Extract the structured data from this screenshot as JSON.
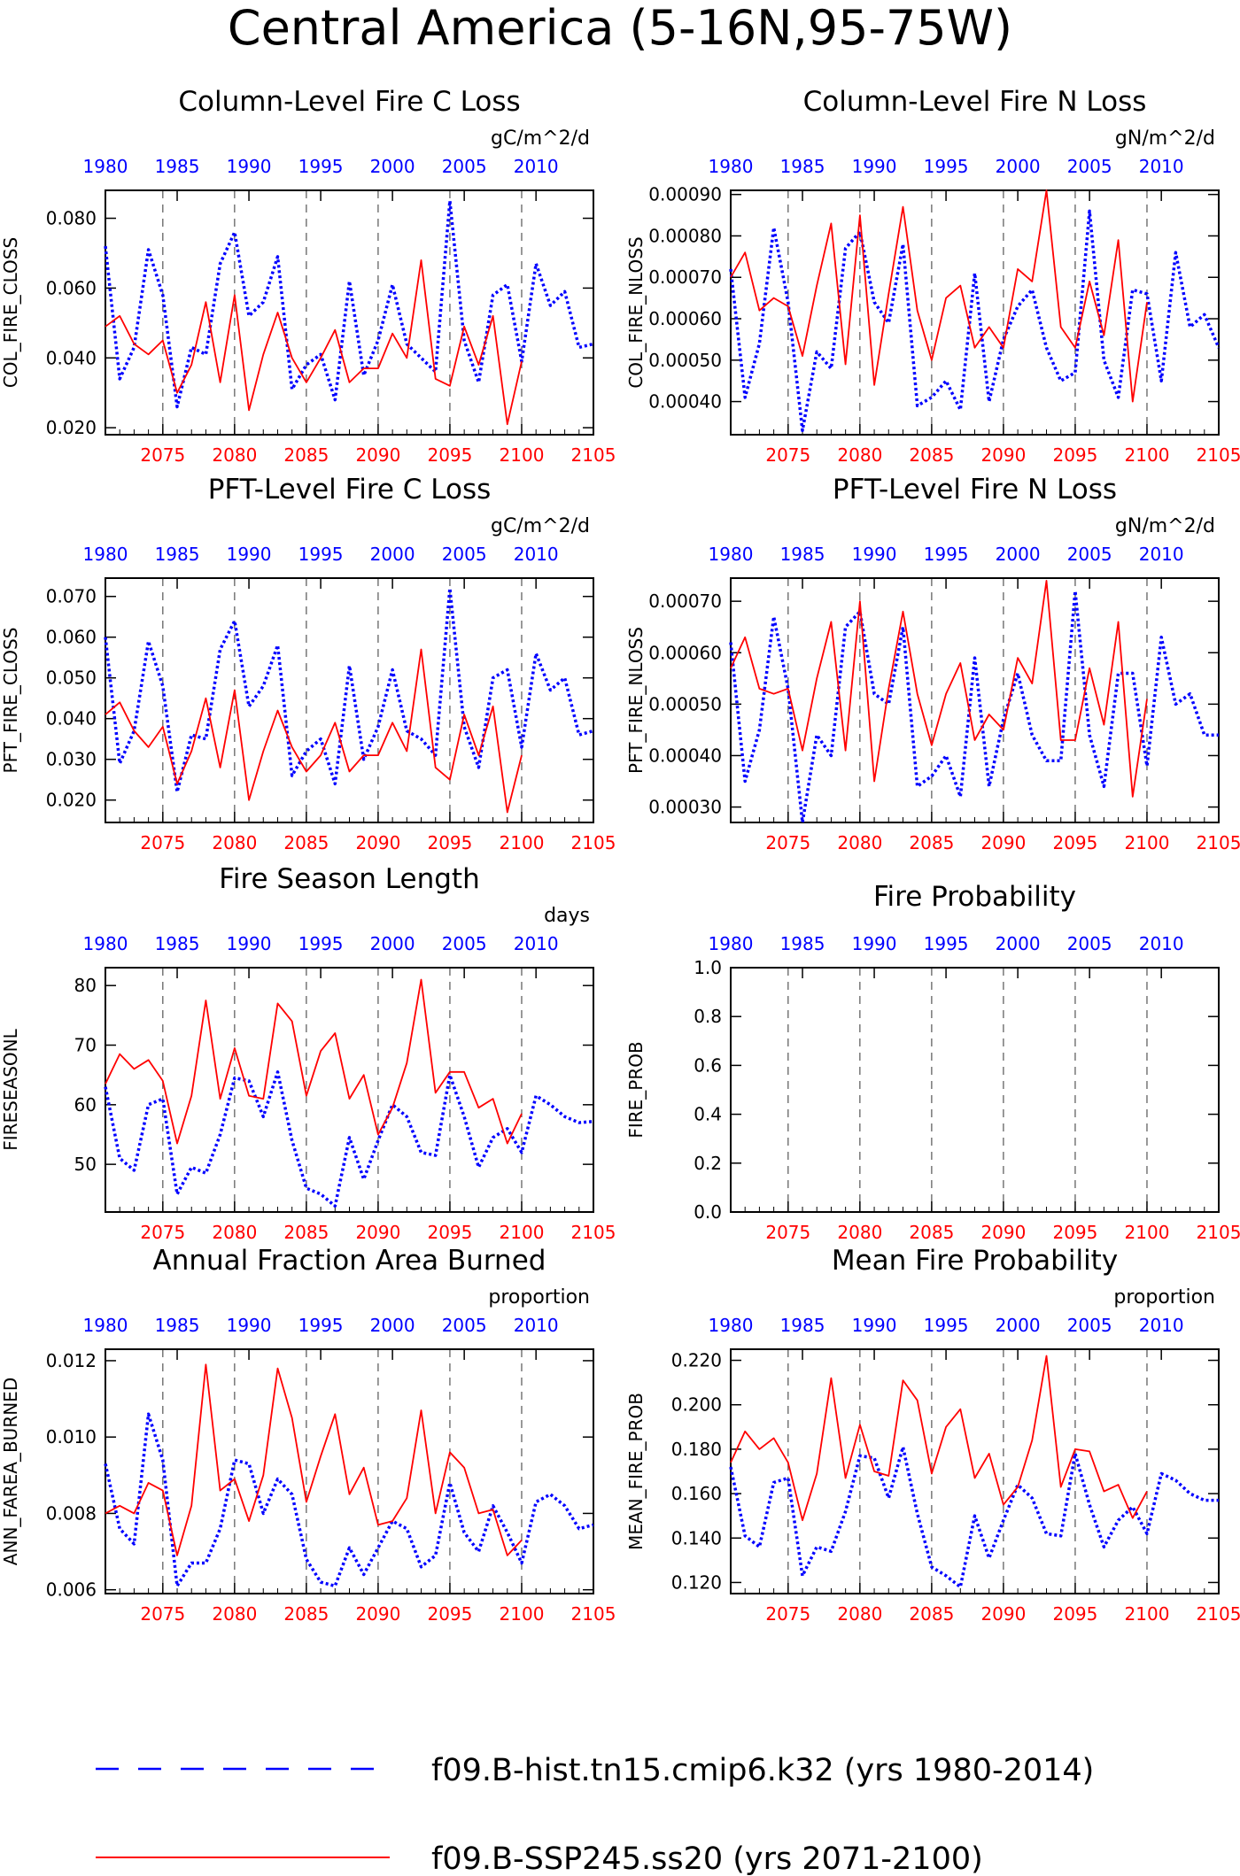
{
  "page": {
    "title": "Central America (5-16N,95-75W)"
  },
  "colors": {
    "hist": "#0000ff",
    "ssp": "#ff0000",
    "axis": "#000000"
  },
  "legend": [
    {
      "style": "dashed",
      "color": "#0000ff",
      "label": "f09.B-hist.tn15.cmip6.k32 (yrs 1980-2014)"
    },
    {
      "style": "solid",
      "color": "#ff0000",
      "label": "f09.B-SSP245.ss20 (yrs 2071-2100)"
    }
  ],
  "chart_data": [
    {
      "type": "line",
      "title": "Column-Level Fire C Loss",
      "ylabel": "COL_FIRE_CLOSS",
      "units": "gC/m^2/d",
      "ylim": [
        0.018,
        0.088
      ],
      "yticks": [
        0.02,
        0.04,
        0.06,
        0.08
      ],
      "ytick_labels": [
        "0.020",
        "0.040",
        "0.060",
        "0.080"
      ],
      "bottom_axis": {
        "label_color": "#ff0000",
        "ticks": [
          2075,
          2080,
          2085,
          2090,
          2095,
          2100,
          2105
        ]
      },
      "top_axis": {
        "label_color": "#0000ff",
        "ticks": [
          1980,
          1985,
          1990,
          1995,
          2000,
          2005,
          2010
        ]
      },
      "series": [
        {
          "name": "f09.B-hist.tn15.cmip6.k32",
          "style": "dotted",
          "color": "#0000ff",
          "x_start": 1980,
          "values": [
            0.072,
            0.034,
            0.043,
            0.071,
            0.058,
            0.026,
            0.043,
            0.041,
            0.067,
            0.076,
            0.052,
            0.056,
            0.069,
            0.031,
            0.038,
            0.041,
            0.028,
            0.062,
            0.035,
            0.045,
            0.061,
            0.044,
            0.04,
            0.036,
            0.085,
            0.045,
            0.033,
            0.058,
            0.061,
            0.039,
            0.067,
            0.055,
            0.059,
            0.043,
            0.044
          ]
        },
        {
          "name": "f09.B-SSP245.ss20",
          "style": "solid",
          "color": "#ff0000",
          "x_start": 2071,
          "values": [
            0.049,
            0.052,
            0.044,
            0.041,
            0.045,
            0.03,
            0.038,
            0.056,
            0.033,
            0.058,
            0.025,
            0.041,
            0.053,
            0.04,
            0.033,
            0.04,
            0.048,
            0.033,
            0.037,
            0.037,
            0.047,
            0.04,
            0.068,
            0.034,
            0.032,
            0.049,
            0.038,
            0.052,
            0.021,
            0.039
          ]
        }
      ]
    },
    {
      "type": "line",
      "title": "Column-Level Fire N Loss",
      "ylabel": "COL_FIRE_NLOSS",
      "units": "gN/m^2/d",
      "ylim": [
        0.00032,
        0.00091
      ],
      "yticks": [
        0.0004,
        0.0005,
        0.0006,
        0.0007,
        0.0008,
        0.0009
      ],
      "ytick_labels": [
        "0.00040",
        "0.00050",
        "0.00060",
        "0.00070",
        "0.00080",
        "0.00090"
      ],
      "bottom_axis": {
        "label_color": "#ff0000",
        "ticks": [
          2075,
          2080,
          2085,
          2090,
          2095,
          2100,
          2105
        ]
      },
      "top_axis": {
        "label_color": "#0000ff",
        "ticks": [
          1980,
          1985,
          1990,
          1995,
          2000,
          2005,
          2010
        ]
      },
      "series": [
        {
          "name": "f09.B-hist.tn15.cmip6.k32",
          "style": "dotted",
          "color": "#0000ff",
          "x_start": 1980,
          "values": [
            0.00072,
            0.00041,
            0.00054,
            0.00082,
            0.00064,
            0.00033,
            0.00052,
            0.00048,
            0.00077,
            0.00081,
            0.00064,
            0.00059,
            0.00078,
            0.00039,
            0.00041,
            0.00045,
            0.00038,
            0.00071,
            0.0004,
            0.00055,
            0.00063,
            0.00067,
            0.00053,
            0.00045,
            0.00047,
            0.00086,
            0.0005,
            0.00041,
            0.00067,
            0.00066,
            0.00045,
            0.00076,
            0.00058,
            0.00061,
            0.00053
          ]
        },
        {
          "name": "f09.B-SSP245.ss20",
          "style": "solid",
          "color": "#ff0000",
          "x_start": 2071,
          "values": [
            0.0007,
            0.00076,
            0.00062,
            0.00065,
            0.00063,
            0.00051,
            0.00068,
            0.00083,
            0.00049,
            0.00085,
            0.00044,
            0.00066,
            0.00087,
            0.00062,
            0.0005,
            0.00065,
            0.00068,
            0.00053,
            0.00058,
            0.00053,
            0.00072,
            0.00069,
            0.00091,
            0.00058,
            0.00053,
            0.00069,
            0.00056,
            0.00079,
            0.0004,
            0.00064
          ]
        }
      ]
    },
    {
      "type": "line",
      "title": "PFT-Level Fire C Loss",
      "ylabel": "PFT_FIRE_CLOSS",
      "units": "gC/m^2/d",
      "ylim": [
        0.0145,
        0.0745
      ],
      "yticks": [
        0.02,
        0.03,
        0.04,
        0.05,
        0.06,
        0.07
      ],
      "ytick_labels": [
        "0.020",
        "0.030",
        "0.040",
        "0.050",
        "0.060",
        "0.070"
      ],
      "bottom_axis": {
        "label_color": "#ff0000",
        "ticks": [
          2075,
          2080,
          2085,
          2090,
          2095,
          2100,
          2105
        ]
      },
      "top_axis": {
        "label_color": "#0000ff",
        "ticks": [
          1980,
          1985,
          1990,
          1995,
          2000,
          2005,
          2010
        ]
      },
      "series": [
        {
          "name": "f09.B-hist.tn15.cmip6.k32",
          "style": "dotted",
          "color": "#0000ff",
          "x_start": 1980,
          "values": [
            0.06,
            0.029,
            0.037,
            0.059,
            0.048,
            0.022,
            0.036,
            0.035,
            0.057,
            0.064,
            0.043,
            0.048,
            0.058,
            0.026,
            0.032,
            0.035,
            0.024,
            0.053,
            0.03,
            0.038,
            0.052,
            0.037,
            0.035,
            0.031,
            0.072,
            0.038,
            0.028,
            0.05,
            0.052,
            0.033,
            0.056,
            0.047,
            0.05,
            0.036,
            0.037
          ]
        },
        {
          "name": "f09.B-SSP245.ss20",
          "style": "solid",
          "color": "#ff0000",
          "x_start": 2071,
          "values": [
            0.041,
            0.044,
            0.037,
            0.033,
            0.038,
            0.024,
            0.032,
            0.045,
            0.028,
            0.047,
            0.02,
            0.032,
            0.042,
            0.033,
            0.027,
            0.031,
            0.039,
            0.027,
            0.031,
            0.031,
            0.039,
            0.032,
            0.057,
            0.028,
            0.025,
            0.041,
            0.031,
            0.043,
            0.017,
            0.031
          ]
        }
      ]
    },
    {
      "type": "line",
      "title": "PFT-Level Fire N Loss",
      "ylabel": "PFT_FIRE_NLOSS",
      "units": "gN/m^2/d",
      "ylim": [
        0.00027,
        0.000745
      ],
      "yticks": [
        0.0003,
        0.0004,
        0.0005,
        0.0006,
        0.0007
      ],
      "ytick_labels": [
        "0.00030",
        "0.00040",
        "0.00050",
        "0.00060",
        "0.00070"
      ],
      "bottom_axis": {
        "label_color": "#ff0000",
        "ticks": [
          2075,
          2080,
          2085,
          2090,
          2095,
          2100,
          2105
        ]
      },
      "top_axis": {
        "label_color": "#0000ff",
        "ticks": [
          1980,
          1985,
          1990,
          1995,
          2000,
          2005,
          2010
        ]
      },
      "series": [
        {
          "name": "f09.B-hist.tn15.cmip6.k32",
          "style": "dotted",
          "color": "#0000ff",
          "x_start": 1980,
          "values": [
            0.00062,
            0.00035,
            0.00045,
            0.00067,
            0.00053,
            0.00027,
            0.00044,
            0.0004,
            0.00065,
            0.00068,
            0.00052,
            0.0005,
            0.00065,
            0.00034,
            0.00036,
            0.0004,
            0.00032,
            0.00059,
            0.00034,
            0.00047,
            0.00056,
            0.00044,
            0.00039,
            0.00039,
            0.00072,
            0.00044,
            0.00034,
            0.00056,
            0.00056,
            0.00038,
            0.00063,
            0.0005,
            0.00052,
            0.00044,
            0.00044
          ]
        },
        {
          "name": "f09.B-SSP245.ss20",
          "style": "solid",
          "color": "#ff0000",
          "x_start": 2071,
          "values": [
            0.00057,
            0.00063,
            0.00053,
            0.00052,
            0.00053,
            0.00041,
            0.00055,
            0.00066,
            0.00041,
            0.0007,
            0.00035,
            0.00053,
            0.00068,
            0.00052,
            0.00042,
            0.00052,
            0.00058,
            0.00043,
            0.00048,
            0.00045,
            0.00059,
            0.00054,
            0.00074,
            0.00043,
            0.00043,
            0.00057,
            0.00046,
            0.00066,
            0.00032,
            0.00051
          ]
        }
      ]
    },
    {
      "type": "line",
      "title": "Fire Season Length",
      "ylabel": "FIRESEASONL",
      "units": "days",
      "ylim": [
        42,
        83
      ],
      "yticks": [
        50,
        60,
        70,
        80
      ],
      "ytick_labels": [
        "50",
        "60",
        "70",
        "80"
      ],
      "bottom_axis": {
        "label_color": "#ff0000",
        "ticks": [
          2075,
          2080,
          2085,
          2090,
          2095,
          2100,
          2105
        ]
      },
      "top_axis": {
        "label_color": "#0000ff",
        "ticks": [
          1980,
          1985,
          1990,
          1995,
          2000,
          2005,
          2010
        ]
      },
      "series": [
        {
          "name": "f09.B-hist.tn15.cmip6.k32",
          "style": "dotted",
          "color": "#0000ff",
          "x_start": 1980,
          "values": [
            63,
            51,
            49,
            60,
            61,
            45,
            49.5,
            48.5,
            55,
            64.5,
            64,
            58,
            65.5,
            54,
            46,
            45,
            43,
            54.5,
            47.5,
            54,
            60,
            58,
            52,
            51.5,
            65,
            58,
            49.5,
            54.5,
            56,
            52,
            61.5,
            60,
            58,
            57,
            57.2
          ]
        },
        {
          "name": "f09.B-SSP245.ss20",
          "style": "solid",
          "color": "#ff0000",
          "x_start": 2071,
          "values": [
            63.5,
            68.5,
            66,
            67.5,
            64,
            53.5,
            61.5,
            77.5,
            61,
            69.5,
            61.5,
            61,
            77,
            74,
            61.5,
            69,
            72,
            61,
            65,
            55,
            59.5,
            67,
            81,
            62,
            65.5,
            65.5,
            59.5,
            61,
            53.5,
            58.5
          ]
        }
      ]
    },
    {
      "type": "line",
      "title": "Fire Probability",
      "ylabel": "FIRE_PROB",
      "units": "",
      "ylim": [
        0.0,
        1.0
      ],
      "yticks": [
        0.0,
        0.2,
        0.4,
        0.6,
        0.8,
        1.0
      ],
      "ytick_labels": [
        "0.0",
        "0.2",
        "0.4",
        "0.6",
        "0.8",
        "1.0"
      ],
      "bottom_axis": {
        "label_color": "#ff0000",
        "ticks": [
          2075,
          2080,
          2085,
          2090,
          2095,
          2100,
          2105
        ]
      },
      "top_axis": {
        "label_color": "#0000ff",
        "ticks": [
          1980,
          1985,
          1990,
          1995,
          2000,
          2005,
          2010
        ]
      },
      "series": []
    },
    {
      "type": "line",
      "title": "Annual Fraction Area Burned",
      "ylabel": "ANN_FAREA_BURNED",
      "units": "proportion",
      "ylim": [
        0.0059,
        0.0123
      ],
      "yticks": [
        0.006,
        0.008,
        0.01,
        0.012
      ],
      "ytick_labels": [
        "0.006",
        "0.008",
        "0.010",
        "0.012"
      ],
      "bottom_axis": {
        "label_color": "#ff0000",
        "ticks": [
          2075,
          2080,
          2085,
          2090,
          2095,
          2100,
          2105
        ]
      },
      "top_axis": {
        "label_color": "#0000ff",
        "ticks": [
          1980,
          1985,
          1990,
          1995,
          2000,
          2005,
          2010
        ]
      },
      "series": [
        {
          "name": "f09.B-hist.tn15.cmip6.k32",
          "style": "dotted",
          "color": "#0000ff",
          "x_start": 1980,
          "values": [
            0.0093,
            0.0076,
            0.0072,
            0.0106,
            0.0094,
            0.0061,
            0.0067,
            0.0067,
            0.0076,
            0.0094,
            0.0093,
            0.008,
            0.0089,
            0.0085,
            0.0068,
            0.0062,
            0.0061,
            0.0071,
            0.0064,
            0.0071,
            0.0078,
            0.0076,
            0.0066,
            0.0069,
            0.0088,
            0.0075,
            0.007,
            0.0082,
            0.0075,
            0.0067,
            0.0083,
            0.0085,
            0.0082,
            0.0076,
            0.0077
          ]
        },
        {
          "name": "f09.B-SSP245.ss20",
          "style": "solid",
          "color": "#ff0000",
          "x_start": 2071,
          "values": [
            0.008,
            0.0082,
            0.008,
            0.0088,
            0.0086,
            0.0069,
            0.0082,
            0.0119,
            0.0086,
            0.0089,
            0.0078,
            0.009,
            0.0118,
            0.0105,
            0.0083,
            0.0095,
            0.0106,
            0.0085,
            0.0092,
            0.0077,
            0.0078,
            0.0084,
            0.0107,
            0.008,
            0.0096,
            0.0092,
            0.008,
            0.0081,
            0.0069,
            0.0073
          ]
        }
      ]
    },
    {
      "type": "line",
      "title": "Mean Fire Probability",
      "ylabel": "MEAN_FIRE_PROB",
      "units": "proportion",
      "ylim": [
        0.115,
        0.225
      ],
      "yticks": [
        0.12,
        0.14,
        0.16,
        0.18,
        0.2,
        0.22
      ],
      "ytick_labels": [
        "0.120",
        "0.140",
        "0.160",
        "0.180",
        "0.200",
        "0.220"
      ],
      "bottom_axis": {
        "label_color": "#ff0000",
        "ticks": [
          2075,
          2080,
          2085,
          2090,
          2095,
          2100,
          2105
        ]
      },
      "top_axis": {
        "label_color": "#0000ff",
        "ticks": [
          1980,
          1985,
          1990,
          1995,
          2000,
          2005,
          2010
        ]
      },
      "series": [
        {
          "name": "f09.B-hist.tn15.cmip6.k32",
          "style": "dotted",
          "color": "#0000ff",
          "x_start": 1980,
          "values": [
            0.172,
            0.141,
            0.136,
            0.165,
            0.167,
            0.123,
            0.136,
            0.134,
            0.152,
            0.177,
            0.176,
            0.158,
            0.181,
            0.151,
            0.127,
            0.123,
            0.118,
            0.15,
            0.131,
            0.148,
            0.164,
            0.158,
            0.142,
            0.141,
            0.178,
            0.155,
            0.136,
            0.148,
            0.154,
            0.142,
            0.169,
            0.166,
            0.16,
            0.157,
            0.157
          ]
        },
        {
          "name": "f09.B-SSP245.ss20",
          "style": "solid",
          "color": "#ff0000",
          "x_start": 2071,
          "values": [
            0.174,
            0.188,
            0.18,
            0.185,
            0.174,
            0.148,
            0.169,
            0.212,
            0.167,
            0.191,
            0.17,
            0.168,
            0.211,
            0.202,
            0.169,
            0.19,
            0.198,
            0.167,
            0.178,
            0.155,
            0.163,
            0.184,
            0.222,
            0.163,
            0.18,
            0.179,
            0.161,
            0.164,
            0.149,
            0.161
          ]
        }
      ]
    }
  ]
}
